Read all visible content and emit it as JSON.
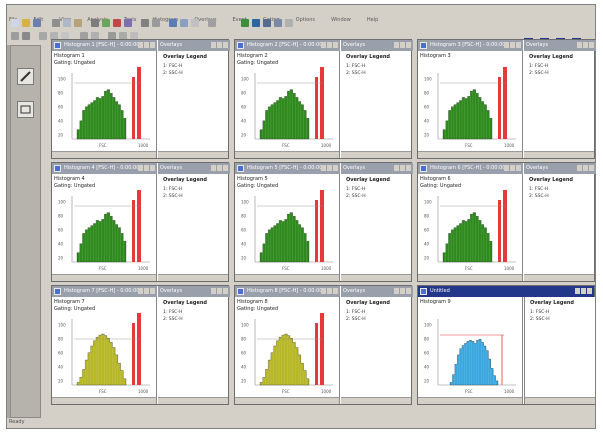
{
  "menubar": [
    "File",
    "Edit",
    "View",
    "Analysis",
    "Tools",
    "Histogram",
    "Overlays",
    "Event",
    "Gating",
    "Options",
    "Window",
    "Help"
  ],
  "statusbar": {
    "text": "Ready"
  },
  "colors": {
    "green": "#2f8a1e",
    "yellow": "#b7b728",
    "blue": "#3aa7df",
    "red_bar": "#e8393a",
    "title_active": "#22368a",
    "title_inactive": "#9aa0ab"
  },
  "windows": [
    {
      "title": "Histogram 1 [FSC-H] - 0:00:00",
      "legend_tab": "Overlays",
      "header": [
        "Histogram 1",
        "Gating: Ungated"
      ],
      "legend_title": "Overlay Legend",
      "legend_items": [
        "1: FSC-H",
        "2: SSC-H"
      ],
      "fill": "#2f8a1e"
    },
    {
      "title": "Histogram 2 [FSC-H] - 0:00:00",
      "legend_tab": "Overlays",
      "header": [
        "Histogram 2",
        "Gating: Ungated"
      ],
      "legend_title": "Overlay Legend",
      "legend_items": [
        "1: FSC-H",
        "2: SSC-H"
      ],
      "fill": "#2f8a1e"
    },
    {
      "title": "Histogram 3 [FSC-H] - 0:00:00",
      "legend_tab": "Overlays",
      "header": [
        "Histogram 3"
      ],
      "legend_title": "Overlay Legend",
      "legend_items": [
        "1: FSC-H",
        "2: SSC-H"
      ],
      "fill": "#2f8a1e"
    },
    {
      "title": "Histogram 4 [FSC-H] - 0:00:00",
      "legend_tab": "Overlays",
      "header": [
        "Histogram 4",
        "Gating: Ungated"
      ],
      "legend_title": "Overlay Legend",
      "legend_items": [
        "1: FSC-H",
        "2: SSC-H"
      ],
      "fill": "#2f8a1e"
    },
    {
      "title": "Histogram 5 [FSC-H] - 0:00:00",
      "legend_tab": "Overlays",
      "header": [
        "Histogram 5",
        "Gating: Ungated"
      ],
      "legend_title": "Overlay Legend",
      "legend_items": [
        "1: FSC-H",
        "2: SSC-H"
      ],
      "fill": "#2f8a1e"
    },
    {
      "title": "Histogram 6 [FSC-H] - 0:00:00",
      "legend_tab": "Overlays",
      "header": [
        "Histogram 6",
        "Gating: Ungated"
      ],
      "legend_title": "Overlay Legend",
      "legend_items": [
        "1: FSC-H",
        "2: SSC-H"
      ],
      "fill": "#2f8a1e"
    },
    {
      "title": "Histogram 7 [FSC-H] - 0:00:00",
      "legend_tab": "Overlays",
      "header": [
        "Histogram 7",
        "Gating: Ungated"
      ],
      "legend_title": "Overlay Legend",
      "legend_items": [
        "1: FSC-H",
        "2: SSC-H"
      ],
      "fill": "#b7b728"
    },
    {
      "title": "Histogram 8 [FSC-H] - 0:00:00",
      "legend_tab": "Overlays",
      "header": [
        "Histogram 8",
        "Gating: Ungated"
      ],
      "legend_title": "Overlay Legend",
      "legend_items": [
        "1: FSC-H",
        "2: SSC-H"
      ],
      "fill": "#b7b728"
    },
    {
      "title": "Untitled",
      "legend_tab": "",
      "header": [
        "Histogram 9"
      ],
      "legend_title": "Overlay Legend",
      "legend_items": [
        "1: FSC-H",
        "2: SSC-H"
      ],
      "fill": "#3aa7df",
      "active": true
    }
  ],
  "histogram": {
    "y_ticks": [
      "100",
      "80",
      "60",
      "40",
      "20"
    ],
    "x_label": "FSC",
    "x_tick": "1000"
  }
}
